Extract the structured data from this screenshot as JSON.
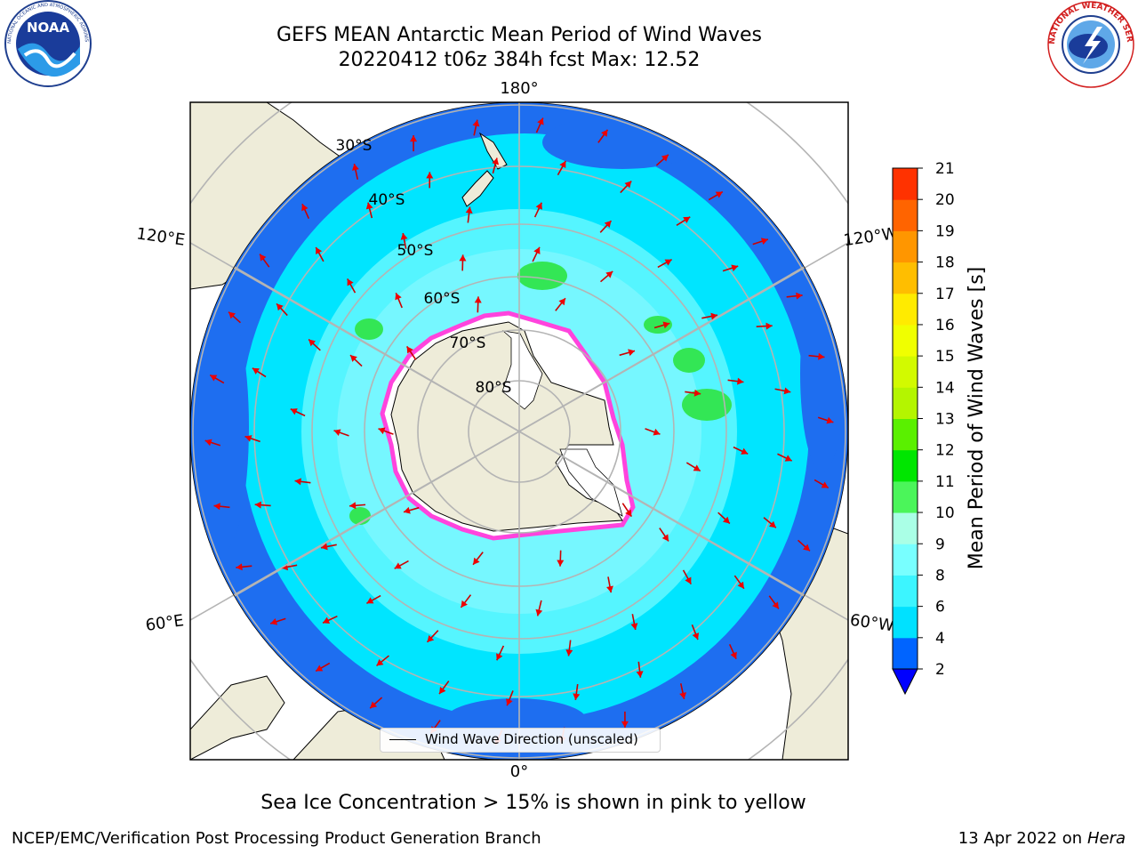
{
  "title": {
    "line1": "GEFS MEAN Antarctic Mean Period of Wind Waves",
    "line2": "20220412 t06z 384h fcst   Max: 12.52"
  },
  "logos": {
    "left": {
      "name": "NOAA",
      "text": "NOAA",
      "ring_text": "NATIONAL OCEANIC AND ATMOSPHERIC ADMINISTRATION • U.S. DEPARTMENT OF COMMERCE"
    },
    "right": {
      "name": "National Weather Service",
      "ring_text": "NATIONAL WEATHER SERVICE"
    }
  },
  "map": {
    "projection": "south polar stereographic",
    "longitude_labels": {
      "top": "180°",
      "bottom": "0°",
      "upper_left": "120°E",
      "upper_right": "120°W",
      "lower_left": "60°E",
      "lower_right": "60°W"
    },
    "latitude_labels": [
      "30°S",
      "40°S",
      "50°S",
      "60°S",
      "70°S",
      "80°S"
    ],
    "legend_label": "Wind Wave Direction (unscaled)",
    "colors": {
      "land": "#eeecd9",
      "ocean_low": "#1e6ef0",
      "ocean_mid": "#00e5ff",
      "ocean_high": "#55f5ff",
      "swell_band": "#9ffbff",
      "green": "#33e655",
      "arrow": "#ee0000",
      "ice_edge": "#ff44dd",
      "grid": "#b4b4b4"
    }
  },
  "colorbar": {
    "label": "Mean Period of Wind Waves [s]",
    "ticks": [
      "2",
      "4",
      "6",
      "8",
      "9",
      "10",
      "11",
      "12",
      "13",
      "14",
      "15",
      "16",
      "17",
      "18",
      "19",
      "20",
      "21"
    ],
    "colors": [
      "#0064ff",
      "#00e1ff",
      "#3cf5ff",
      "#78ffff",
      "#aaffe6",
      "#4bf55a",
      "#00e600",
      "#5af000",
      "#b4f500",
      "#d2fa00",
      "#f0ff00",
      "#ffeb00",
      "#ffbe00",
      "#ff9600",
      "#ff6400",
      "#ff3200",
      "#ff0000"
    ],
    "under_color": "#0000ff"
  },
  "note": "Sea Ice Concentration > 15% is shown in pink to yellow",
  "footer": {
    "left": "NCEP/EMC/Verification Post Processing Product Generation Branch",
    "right_date": "13 Apr 2022 on ",
    "right_machine": "Hera"
  }
}
